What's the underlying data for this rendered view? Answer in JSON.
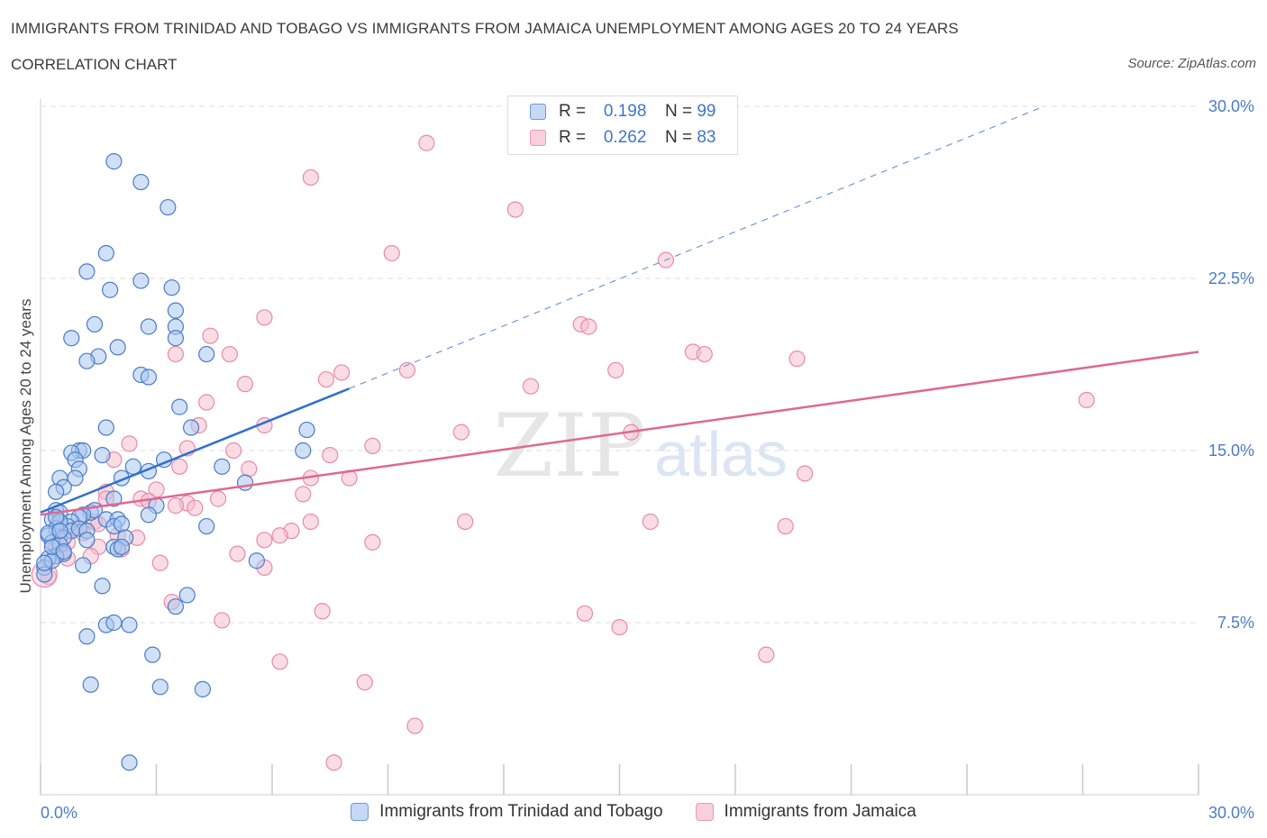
{
  "header": {
    "title": "IMMIGRANTS FROM TRINIDAD AND TOBAGO VS IMMIGRANTS FROM JAMAICA UNEMPLOYMENT AMONG AGES 20 TO 24 YEARS",
    "subtitle": "CORRELATION CHART",
    "source": "Source: ZipAtlas.com"
  },
  "watermark": {
    "zip": "ZIP",
    "atlas": "atlas"
  },
  "legend": {
    "series_a": {
      "r_label": "R =",
      "r_value": "0.198",
      "n_label": "N =",
      "n_value": "99"
    },
    "series_b": {
      "r_label": "R =",
      "r_value": "0.262",
      "n_label": "N =",
      "n_value": "83"
    }
  },
  "colors": {
    "series_a_fill": "#aac6ef",
    "series_a_stroke": "#4a7cc7",
    "series_a_line": "#2f6fce",
    "series_b_fill": "#f6bfd0",
    "series_b_stroke": "#e88aa8",
    "series_b_line": "#e06792",
    "grid": "#dddddd",
    "tick_text": "#4a7cc7"
  },
  "chart_data": {
    "type": "scatter",
    "xlabel": "",
    "ylabel": "Unemployment Among Ages 20 to 24 years",
    "xlim": [
      0,
      30
    ],
    "ylim": [
      0,
      30
    ],
    "x_tick_labels": [
      "0.0%",
      "30.0%"
    ],
    "y_ticks": [
      7.5,
      15.0,
      22.5,
      30.0
    ],
    "y_tick_labels": [
      "7.5%",
      "15.0%",
      "22.5%",
      "30.0%"
    ],
    "grid": true,
    "legend_position": "top-center",
    "series": [
      {
        "name": "Immigrants from Trinidad and Tobago",
        "trend": {
          "x0": 0,
          "y0": 12.3,
          "x1": 8.0,
          "y1": 17.7,
          "dashed_to_x": 26.0,
          "dashed_to_y": 30.0
        },
        "points": [
          [
            1.9,
            27.6
          ],
          [
            2.6,
            26.7
          ],
          [
            3.3,
            25.6
          ],
          [
            1.7,
            23.6
          ],
          [
            1.2,
            22.8
          ],
          [
            2.6,
            22.4
          ],
          [
            3.4,
            22.1
          ],
          [
            1.8,
            22.0
          ],
          [
            3.5,
            21.1
          ],
          [
            1.4,
            20.5
          ],
          [
            2.8,
            20.4
          ],
          [
            3.5,
            20.4
          ],
          [
            0.8,
            19.9
          ],
          [
            3.5,
            19.9
          ],
          [
            2.0,
            19.5
          ],
          [
            1.5,
            19.1
          ],
          [
            4.3,
            19.2
          ],
          [
            1.2,
            18.9
          ],
          [
            2.6,
            18.3
          ],
          [
            2.8,
            18.2
          ],
          [
            3.6,
            16.9
          ],
          [
            1.7,
            16.0
          ],
          [
            3.9,
            16.0
          ],
          [
            6.9,
            15.9
          ],
          [
            1.0,
            15.0
          ],
          [
            1.1,
            15.0
          ],
          [
            0.8,
            14.9
          ],
          [
            6.8,
            15.0
          ],
          [
            1.6,
            14.8
          ],
          [
            0.9,
            14.6
          ],
          [
            3.2,
            14.6
          ],
          [
            2.4,
            14.3
          ],
          [
            4.7,
            14.3
          ],
          [
            1.0,
            14.2
          ],
          [
            2.8,
            14.1
          ],
          [
            0.5,
            13.8
          ],
          [
            0.9,
            13.8
          ],
          [
            2.1,
            13.8
          ],
          [
            5.3,
            13.6
          ],
          [
            0.6,
            13.4
          ],
          [
            0.4,
            13.2
          ],
          [
            1.9,
            12.9
          ],
          [
            3.0,
            12.6
          ],
          [
            0.4,
            12.4
          ],
          [
            0.5,
            12.3
          ],
          [
            1.3,
            12.3
          ],
          [
            1.4,
            12.4
          ],
          [
            1.1,
            12.2
          ],
          [
            1.0,
            12.1
          ],
          [
            0.3,
            12.0
          ],
          [
            0.5,
            11.9
          ],
          [
            0.8,
            11.9
          ],
          [
            1.7,
            12.0
          ],
          [
            2.0,
            12.0
          ],
          [
            0.7,
            11.7
          ],
          [
            1.9,
            11.7
          ],
          [
            2.1,
            11.8
          ],
          [
            2.8,
            12.2
          ],
          [
            0.8,
            11.5
          ],
          [
            1.0,
            11.6
          ],
          [
            0.5,
            11.9
          ],
          [
            0.4,
            11.6
          ],
          [
            1.2,
            11.5
          ],
          [
            4.3,
            11.7
          ],
          [
            0.2,
            11.3
          ],
          [
            0.6,
            11.2
          ],
          [
            1.2,
            11.1
          ],
          [
            2.2,
            11.2
          ],
          [
            0.3,
            11.0
          ],
          [
            0.5,
            10.9
          ],
          [
            1.9,
            10.8
          ],
          [
            2.0,
            10.7
          ],
          [
            2.1,
            10.8
          ],
          [
            0.6,
            10.5
          ],
          [
            0.4,
            10.4
          ],
          [
            0.2,
            10.3
          ],
          [
            5.6,
            10.2
          ],
          [
            0.1,
            9.9
          ],
          [
            0.3,
            10.2
          ],
          [
            1.1,
            10.0
          ],
          [
            0.1,
            9.6
          ],
          [
            1.6,
            9.1
          ],
          [
            3.8,
            8.7
          ],
          [
            3.5,
            8.2
          ],
          [
            1.7,
            7.4
          ],
          [
            1.9,
            7.5
          ],
          [
            2.3,
            7.4
          ],
          [
            1.2,
            6.9
          ],
          [
            2.9,
            6.1
          ],
          [
            1.3,
            4.8
          ],
          [
            3.1,
            4.7
          ],
          [
            4.2,
            4.6
          ],
          [
            2.3,
            1.4
          ],
          [
            0.3,
            10.8
          ],
          [
            0.6,
            10.6
          ],
          [
            0.4,
            12.1
          ],
          [
            0.2,
            11.4
          ],
          [
            0.1,
            10.1
          ],
          [
            0.5,
            11.5
          ]
        ]
      },
      {
        "name": "Immigrants from Jamaica",
        "trend": {
          "x0": 0,
          "y0": 12.2,
          "x1": 30.0,
          "y1": 19.3
        },
        "points": [
          [
            10.0,
            28.4
          ],
          [
            7.0,
            26.9
          ],
          [
            12.3,
            25.5
          ],
          [
            9.1,
            23.6
          ],
          [
            16.2,
            23.3
          ],
          [
            5.8,
            20.8
          ],
          [
            14.0,
            20.5
          ],
          [
            14.2,
            20.4
          ],
          [
            4.4,
            20.0
          ],
          [
            3.5,
            19.2
          ],
          [
            4.9,
            19.2
          ],
          [
            16.9,
            19.3
          ],
          [
            17.2,
            19.2
          ],
          [
            19.6,
            19.0
          ],
          [
            7.8,
            18.4
          ],
          [
            9.5,
            18.5
          ],
          [
            14.9,
            18.5
          ],
          [
            7.4,
            18.1
          ],
          [
            5.3,
            17.9
          ],
          [
            12.7,
            17.8
          ],
          [
            27.1,
            17.2
          ],
          [
            4.3,
            17.1
          ],
          [
            4.1,
            16.1
          ],
          [
            5.8,
            16.1
          ],
          [
            10.9,
            15.8
          ],
          [
            15.3,
            15.8
          ],
          [
            2.3,
            15.3
          ],
          [
            3.8,
            15.1
          ],
          [
            8.6,
            15.2
          ],
          [
            5.0,
            15.0
          ],
          [
            7.5,
            14.8
          ],
          [
            1.9,
            14.6
          ],
          [
            5.4,
            14.2
          ],
          [
            3.6,
            14.3
          ],
          [
            19.8,
            14.0
          ],
          [
            7.0,
            13.8
          ],
          [
            8.0,
            13.8
          ],
          [
            3.0,
            13.3
          ],
          [
            6.8,
            13.1
          ],
          [
            1.7,
            13.2
          ],
          [
            1.7,
            12.9
          ],
          [
            2.6,
            12.9
          ],
          [
            4.6,
            12.9
          ],
          [
            2.8,
            12.8
          ],
          [
            3.8,
            12.7
          ],
          [
            3.5,
            12.6
          ],
          [
            4.0,
            12.5
          ],
          [
            1.4,
            11.9
          ],
          [
            7.0,
            11.9
          ],
          [
            11.0,
            11.9
          ],
          [
            15.8,
            11.9
          ],
          [
            19.3,
            11.7
          ],
          [
            6.5,
            11.5
          ],
          [
            1.1,
            11.4
          ],
          [
            6.2,
            11.3
          ],
          [
            2.0,
            11.3
          ],
          [
            2.5,
            11.2
          ],
          [
            5.8,
            11.1
          ],
          [
            8.6,
            11.0
          ],
          [
            1.5,
            10.8
          ],
          [
            2.1,
            10.7
          ],
          [
            0.5,
            10.5
          ],
          [
            1.3,
            10.4
          ],
          [
            5.1,
            10.5
          ],
          [
            0.7,
            10.3
          ],
          [
            3.1,
            10.1
          ],
          [
            5.8,
            9.9
          ],
          [
            0.2,
            9.5
          ],
          [
            3.4,
            8.4
          ],
          [
            7.3,
            8.0
          ],
          [
            14.1,
            7.9
          ],
          [
            4.7,
            7.6
          ],
          [
            15.0,
            7.3
          ],
          [
            18.8,
            6.1
          ],
          [
            6.2,
            5.8
          ],
          [
            8.4,
            4.9
          ],
          [
            9.7,
            3.0
          ],
          [
            7.6,
            1.4
          ],
          [
            0.9,
            11.6
          ],
          [
            1.5,
            11.8
          ],
          [
            0.4,
            10.9
          ],
          [
            0.7,
            11.0
          ],
          [
            0.5,
            11.2
          ]
        ]
      }
    ]
  },
  "bottom_legend": {
    "series_a": "Immigrants from Trinidad and Tobago",
    "series_b": "Immigrants from Jamaica"
  }
}
